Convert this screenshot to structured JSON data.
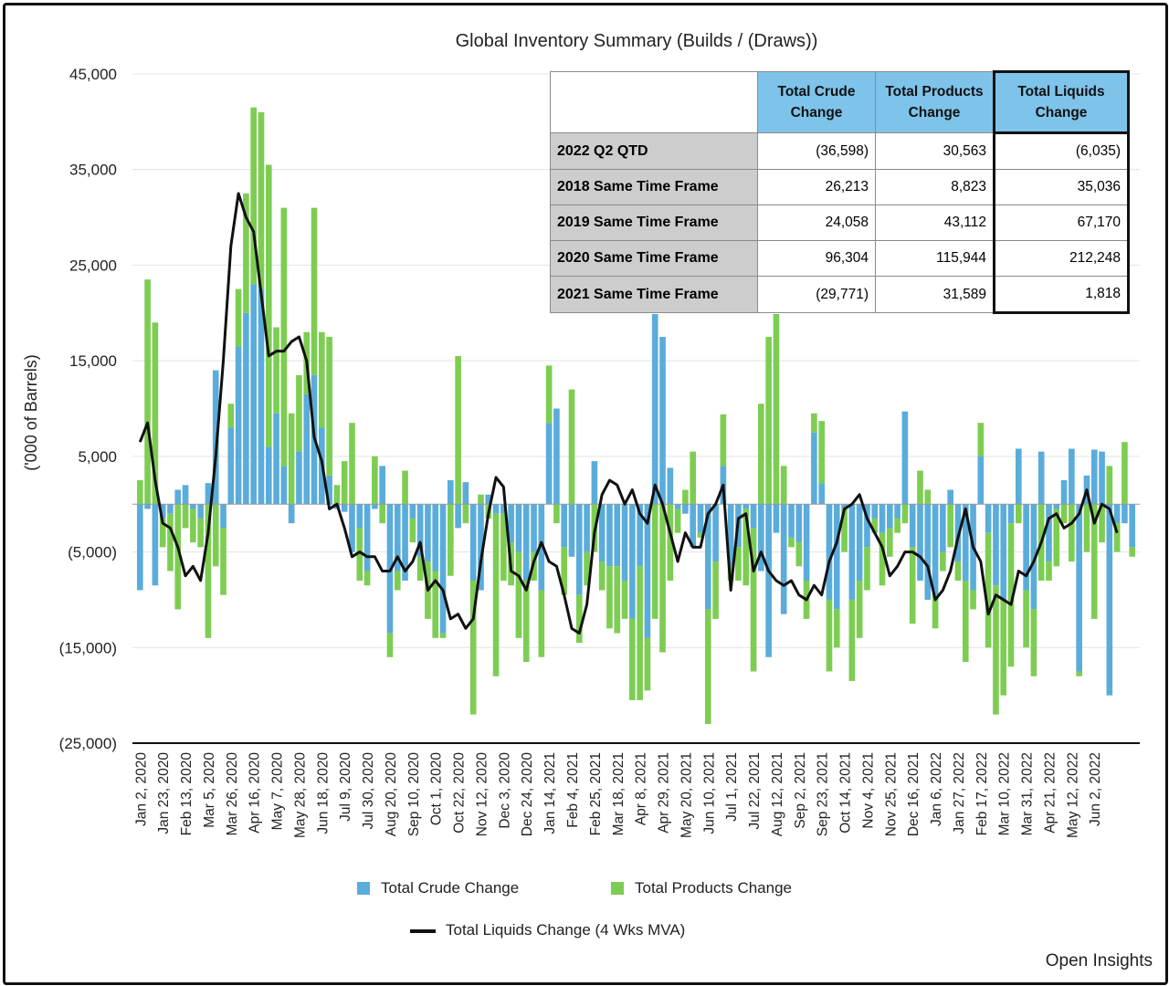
{
  "chart_data": {
    "type": "bar",
    "title": "Global Inventory Summary (Builds / (Draws))",
    "ylabel": "('000 of Barrels)",
    "ylim": [
      -25000,
      45000
    ],
    "y_ticks": [
      {
        "value": 45000,
        "label": "45,000"
      },
      {
        "value": 35000,
        "label": "35,000"
      },
      {
        "value": 25000,
        "label": "25,000"
      },
      {
        "value": 15000,
        "label": "15,000"
      },
      {
        "value": 5000,
        "label": "5,000"
      },
      {
        "value": -5000,
        "label": "(5,000)"
      },
      {
        "value": -15000,
        "label": "(15,000)"
      },
      {
        "value": -25000,
        "label": "(25,000)"
      }
    ],
    "x_tick_labels": [
      "Jan 2, 2020",
      "Jan 23, 2020",
      "Feb 13, 2020",
      "Mar 5, 2020",
      "Mar 26, 2020",
      "Apr 16, 2020",
      "May 7, 2020",
      "May 28, 2020",
      "Jun 18, 2020",
      "Jul 9, 2020",
      "Jul 30, 2020",
      "Aug 20, 2020",
      "Sep 10, 2020",
      "Oct 1, 2020",
      "Oct 22, 2020",
      "Nov 12, 2020",
      "Dec 3, 2020",
      "Dec 24, 2020",
      "Jan 14, 2021",
      "Feb 4, 2021",
      "Feb 25, 2021",
      "Mar 18, 2021",
      "Apr 8, 2021",
      "Apr 29, 2021",
      "May 20, 2021",
      "Jun 10, 2021",
      "Jul 1, 2021",
      "Jul 22, 2021",
      "Aug 12, 2021",
      "Sep 2, 2021",
      "Sep 23, 2021",
      "Oct 14, 2021",
      "Nov 4, 2021",
      "Nov 25, 2021",
      "Dec 16, 2021",
      "Jan 6, 2022",
      "Jan 27, 2022",
      "Feb 17, 2022",
      "Mar 10, 2022",
      "Mar 31, 2022",
      "Apr 21, 2022",
      "May 12, 2022",
      "Jun 2, 2022"
    ],
    "weeks_per_tick": 3,
    "series": [
      {
        "name": "Total Crude Change",
        "color": "#5aacdb",
        "values": [
          -9000,
          -500,
          -8500,
          -1500,
          -1000,
          1500,
          2000,
          -500,
          -1500,
          2200,
          14000,
          -2500,
          8000,
          16500,
          20000,
          23000,
          22500,
          6000,
          9500,
          4000,
          -2000,
          5500,
          11500,
          13500,
          8000,
          3000,
          -500,
          -800,
          -5000,
          -2500,
          -7000,
          -500,
          4000,
          -13500,
          -7000,
          -8000,
          -1500,
          -5500,
          -6000,
          -7000,
          -13500,
          2500,
          -2500,
          2300,
          -8000,
          -9000,
          1000,
          -1000,
          -1000,
          -4000,
          -5000,
          -8000,
          -5000,
          -9000,
          8500,
          10000,
          -4500,
          -5500,
          -9500,
          -5000,
          4500,
          -6000,
          -6500,
          -6500,
          -8000,
          -12000,
          -6500,
          -14000,
          20000,
          17500,
          3800,
          -500,
          -1000,
          -4500,
          -3000,
          -11000,
          -6000,
          4000,
          -6500,
          -4500,
          -500,
          -2500,
          -7000,
          -16000,
          -3000,
          -11500,
          -3500,
          -4000,
          -8000,
          7500,
          2200,
          -10000,
          -11000,
          -500,
          -10000,
          -8000,
          -4500,
          -1500,
          -3000,
          -2500,
          -1500,
          9700,
          -4500,
          -8000,
          -10000,
          -9500,
          -5000,
          1500,
          -6000,
          -8000,
          -9000,
          5000,
          -3000,
          -8500,
          -10000,
          -2000,
          5800,
          -9000,
          -11000,
          5500,
          -6000,
          -500,
          2500,
          5800,
          -17500,
          3000,
          5700,
          5500,
          -20000,
          -2000,
          -2000,
          -4500
        ],
        "stack_with": "Total Products Change"
      },
      {
        "name": "Total Products Change",
        "color": "#7dcd52",
        "values": [
          2500,
          23500,
          19000,
          -3000,
          -6000,
          -11000,
          -2500,
          -3500,
          -3000,
          -14000,
          -6500,
          -7000,
          2500,
          6000,
          12500,
          18500,
          18500,
          29500,
          9000,
          27000,
          9500,
          8000,
          6500,
          17500,
          10000,
          14500,
          2000,
          4500,
          8500,
          -5500,
          -1500,
          5000,
          -2000,
          -2500,
          -2000,
          3500,
          -2500,
          -2500,
          -6000,
          -7000,
          -500,
          -7500,
          15500,
          -2000,
          -14000,
          1000,
          -1500,
          -17000,
          -7000,
          -4500,
          -9000,
          -8500,
          -3000,
          -7000,
          6000,
          -2000,
          -5000,
          12000,
          -5000,
          -3500,
          -5000,
          -3000,
          -6500,
          -7000,
          -4000,
          -8500,
          -14000,
          -5500,
          -12000,
          -15500,
          -8000,
          -2500,
          1500,
          5500,
          -500,
          -12000,
          -6000,
          5400,
          -1500,
          -3500,
          -8000,
          -15000,
          10500,
          17500,
          25000,
          4000,
          -1000,
          -2500,
          -4000,
          2000,
          6500,
          -7500,
          -4000,
          -4500,
          -8500,
          -6000,
          -4500,
          -1500,
          -5500,
          -3000,
          -1500,
          -2000,
          -8000,
          3500,
          1500,
          -3500,
          -2000,
          -4500,
          -2000,
          -8500,
          -2000,
          3500,
          -12000,
          -13500,
          -10000,
          -15000,
          -2000,
          -6000,
          -7000,
          -8000,
          -2000,
          -6000,
          -2000,
          -6000,
          -500,
          -5000,
          -12000,
          -4000,
          4000,
          -3000,
          6500,
          -1000,
          7000,
          2700
        ],
        "stack_with": "Total Crude Change"
      }
    ],
    "line": {
      "name": "Total Liquids Change (4 Wks MVA)",
      "color": "#111111",
      "values": [
        6500,
        8500,
        2500,
        -2000,
        -2500,
        -4500,
        -7500,
        -6500,
        -8000,
        -3000,
        5000,
        15000,
        27000,
        32500,
        30000,
        28500,
        22000,
        15500,
        16000,
        16000,
        17000,
        17500,
        15000,
        7000,
        4500,
        -500,
        0,
        -2500,
        -5500,
        -5000,
        -5500,
        -5500,
        -7000,
        -7000,
        -5500,
        -7000,
        -6000,
        -4000,
        -9000,
        -8000,
        -9000,
        -12000,
        -11500,
        -13000,
        -12000,
        -6000,
        -1000,
        2800,
        1800,
        -7000,
        -7500,
        -9000,
        -6000,
        -4000,
        -6000,
        -6500,
        -9500,
        -13000,
        -13500,
        -10500,
        -3000,
        1000,
        2500,
        2000,
        0,
        1500,
        -1000,
        -2000,
        2000,
        0,
        -3000,
        -6000,
        -3000,
        -4500,
        -4500,
        -1000,
        0,
        2000,
        -9000,
        -1500,
        -1000,
        -7000,
        -5000,
        -7000,
        -8000,
        -8500,
        -8000,
        -9500,
        -10000,
        -8500,
        -9500,
        -6000,
        -4000,
        -500,
        0,
        1000,
        -1500,
        -3000,
        -4500,
        -7500,
        -6500,
        -5000,
        -5000,
        -5500,
        -6500,
        -10000,
        -9000,
        -7000,
        -3500,
        -500,
        -4500,
        -6000,
        -11500,
        -9500,
        -10000,
        -10500,
        -7000,
        -7500,
        -6000,
        -4000,
        -1500,
        -1000,
        -2500,
        -2000,
        -1000,
        1500,
        -2000,
        0,
        -500,
        -3000
      ]
    },
    "legend_placement": "bottom",
    "grid": "horizontal"
  },
  "summary_table": {
    "headers": [
      "Total Crude Change",
      "Total Products Change",
      "Total Liquids Change"
    ],
    "rows": [
      {
        "label": "2022 Q2 QTD",
        "crude": "(36,598)",
        "products": "30,563",
        "liquids": "(6,035)"
      },
      {
        "label": "2018 Same Time Frame",
        "crude": "26,213",
        "products": "8,823",
        "liquids": "35,036"
      },
      {
        "label": "2019 Same Time Frame",
        "crude": "24,058",
        "products": "43,112",
        "liquids": "67,170"
      },
      {
        "label": "2020 Same Time Frame",
        "crude": "96,304",
        "products": "115,944",
        "liquids": "212,248"
      },
      {
        "label": "2021 Same Time Frame",
        "crude": "(29,771)",
        "products": "31,589",
        "liquids": "1,818"
      }
    ]
  },
  "legend": {
    "crude_label": "Total Crude Change",
    "products_label": "Total Products Change",
    "liquids_label": "Total Liquids Change (4 Wks MVA)"
  },
  "credit": "Open Insights"
}
